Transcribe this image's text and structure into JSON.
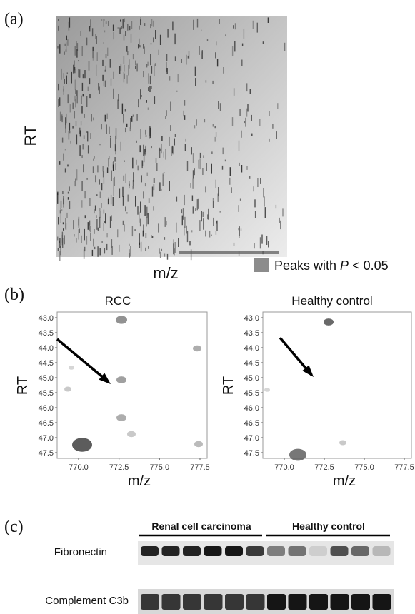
{
  "panel_a": {
    "label": "(a)",
    "y_label": "RT",
    "x_label": "m/z",
    "legend": {
      "prefix": "Peaks with ",
      "italic": "P",
      "suffix": " < 0.05"
    }
  },
  "panel_b": {
    "label": "(b)",
    "plots": [
      {
        "title": "RCC",
        "y_label": "RT",
        "x_label": "m/z",
        "yticks": [
          "43.0",
          "43.5",
          "44.0",
          "44.5",
          "45.0",
          "45.5",
          "46.0",
          "46.5",
          "47.0",
          "47.5"
        ],
        "xticks": [
          "770.0",
          "772.5",
          "775.0",
          "777.5"
        ]
      },
      {
        "title": "Healthy control",
        "y_label": "RT",
        "x_label": "m/z",
        "yticks": [
          "43.0",
          "43.5",
          "44.0",
          "44.5",
          "45.0",
          "45.5",
          "46.0",
          "46.5",
          "47.0",
          "47.5"
        ],
        "xticks": [
          "770.0",
          "772.5",
          "775.0",
          "777.5"
        ]
      }
    ]
  },
  "panel_c": {
    "label": "(c)",
    "group_1": "Renal cell carcinoma",
    "group_2": "Healthy control",
    "row_1": "Fibronectin",
    "row_2": "Complement C3b"
  }
}
